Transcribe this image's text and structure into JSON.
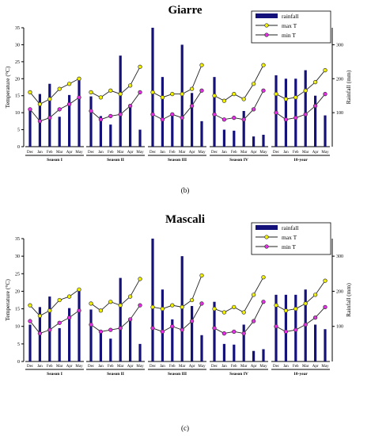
{
  "chart_data": [
    {
      "type": "bar+line",
      "title": "Giarre",
      "caption": "(b)",
      "ylabel_left": "Temperature (°C)",
      "ylabel_right": "Rainfall (mm)",
      "ylim_left": [
        0,
        35
      ],
      "ylim_right": [
        0,
        350
      ],
      "left_ticks": [
        "0",
        "5",
        "10",
        "15",
        "20",
        "25",
        "30",
        "35"
      ],
      "right_ticks": [
        "100",
        "200",
        "300"
      ],
      "legend": [
        "rainfall",
        "max T",
        "min T"
      ],
      "colors": {
        "rainfall": "#14117a",
        "max_T": "#f2f200",
        "min_T": "#e52ee5"
      },
      "groups": [
        {
          "label": "Season I",
          "months": [
            "Dec",
            "Jan",
            "Feb",
            "Mar",
            "Apr",
            "May"
          ],
          "rainfall": [
            105,
            155,
            185,
            88,
            152,
            195
          ],
          "max_T": [
            16.0,
            12.5,
            14.0,
            17.0,
            18.5,
            20.0
          ],
          "min_T": [
            11.0,
            7.5,
            8.5,
            11.0,
            12.5,
            14.5
          ]
        },
        {
          "label": "Season II",
          "months": [
            "Dec",
            "Jan",
            "Feb",
            "Mar",
            "Apr",
            "May"
          ],
          "rainfall": [
            148,
            90,
            65,
            268,
            122,
            50
          ],
          "max_T": [
            16.0,
            14.5,
            16.5,
            15.5,
            18.0,
            23.5
          ],
          "min_T": [
            10.5,
            8.0,
            9.0,
            9.5,
            12.0,
            16.0
          ]
        },
        {
          "label": "Season III",
          "months": [
            "Dec",
            "Jan",
            "Feb",
            "Mar",
            "Apr",
            "May"
          ],
          "rainfall": [
            350,
            205,
            95,
            300,
            158,
            75
          ],
          "max_T": [
            16.0,
            14.5,
            15.5,
            15.5,
            17.0,
            24.0
          ],
          "min_T": [
            9.5,
            8.0,
            9.5,
            8.5,
            12.0,
            16.5
          ]
        },
        {
          "label": "Season IV",
          "months": [
            "Dec",
            "Jan",
            "Feb",
            "Mar",
            "Apr",
            "May"
          ],
          "rainfall": [
            205,
            50,
            47,
            105,
            30,
            35
          ],
          "max_T": [
            15.0,
            13.5,
            15.5,
            14.0,
            18.5,
            24.0
          ],
          "min_T": [
            9.5,
            8.0,
            8.5,
            8.0,
            11.0,
            16.5
          ]
        },
        {
          "label": "10-year",
          "months": [
            "Dec",
            "Jan",
            "Feb",
            "Mar",
            "Apr",
            "May"
          ],
          "rainfall": [
            210,
            200,
            200,
            225,
            150,
            92
          ],
          "max_T": [
            15.5,
            14.0,
            14.5,
            16.5,
            19.0,
            22.5
          ],
          "min_T": [
            10.0,
            8.0,
            8.5,
            9.5,
            12.0,
            15.5
          ]
        }
      ]
    },
    {
      "type": "bar+line",
      "title": "Mascali",
      "caption": "(c)",
      "ylabel_left": "Temperature (°C)",
      "ylabel_right": "Rainfall (mm)",
      "ylim_left": [
        0,
        35
      ],
      "ylim_right": [
        0,
        350
      ],
      "left_ticks": [
        "0",
        "5",
        "10",
        "15",
        "20",
        "25",
        "30",
        "35"
      ],
      "right_ticks": [
        "100",
        "200",
        "300"
      ],
      "legend": [
        "rainfall",
        "max T",
        "min T"
      ],
      "colors": {
        "rainfall": "#14117a",
        "max_T": "#f2f200",
        "min_T": "#e52ee5"
      },
      "groups": [
        {
          "label": "Season I",
          "months": [
            "Dec",
            "Jan",
            "Feb",
            "Mar",
            "Apr",
            "May"
          ],
          "rainfall": [
            105,
            155,
            185,
            95,
            152,
            200
          ],
          "max_T": [
            16.0,
            13.0,
            14.5,
            17.5,
            18.5,
            20.5
          ],
          "min_T": [
            11.5,
            8.0,
            9.0,
            11.0,
            12.5,
            14.5
          ]
        },
        {
          "label": "Season II",
          "months": [
            "Dec",
            "Jan",
            "Feb",
            "Mar",
            "Apr",
            "May"
          ],
          "rainfall": [
            148,
            90,
            65,
            238,
            115,
            50
          ],
          "max_T": [
            16.5,
            14.5,
            17.0,
            16.0,
            18.5,
            23.5
          ],
          "min_T": [
            10.5,
            8.5,
            9.0,
            9.5,
            12.0,
            16.0
          ]
        },
        {
          "label": "Season III",
          "months": [
            "Dec",
            "Jan",
            "Feb",
            "Mar",
            "Apr",
            "May"
          ],
          "rainfall": [
            350,
            205,
            120,
            300,
            158,
            75
          ],
          "max_T": [
            15.5,
            15.0,
            16.0,
            15.5,
            17.5,
            24.5
          ],
          "min_T": [
            9.5,
            8.5,
            10.0,
            9.0,
            11.5,
            16.5
          ]
        },
        {
          "label": "Season IV",
          "months": [
            "Dec",
            "Jan",
            "Feb",
            "Mar",
            "Apr",
            "May"
          ],
          "rainfall": [
            170,
            50,
            48,
            105,
            30,
            35
          ],
          "max_T": [
            15.0,
            14.0,
            15.5,
            14.0,
            19.0,
            24.0
          ],
          "min_T": [
            9.5,
            8.0,
            8.5,
            8.0,
            11.5,
            17.0
          ]
        },
        {
          "label": "10-year",
          "months": [
            "Dec",
            "Jan",
            "Feb",
            "Mar",
            "Apr",
            "May"
          ],
          "rainfall": [
            190,
            190,
            190,
            205,
            105,
            92
          ],
          "max_T": [
            16.0,
            14.5,
            15.0,
            16.5,
            19.0,
            23.0
          ],
          "min_T": [
            10.0,
            8.5,
            9.0,
            10.5,
            12.5,
            15.5
          ]
        }
      ]
    }
  ]
}
